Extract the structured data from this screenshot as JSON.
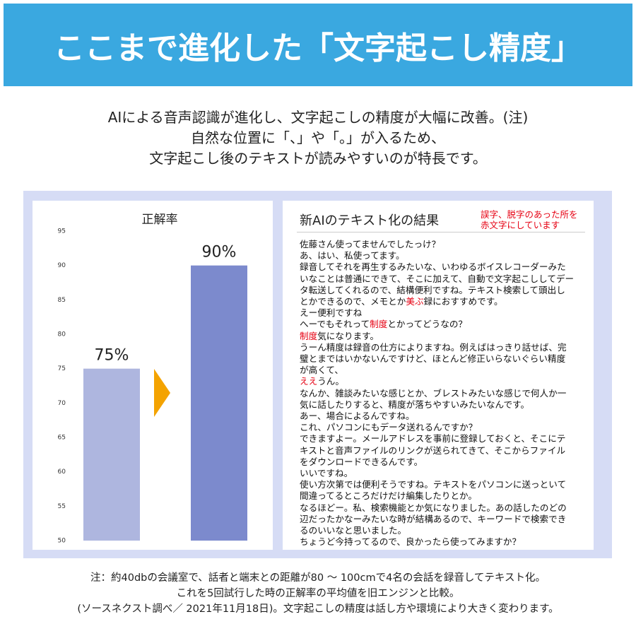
{
  "header": {
    "title": "ここまで進化した「文字起こし精度」"
  },
  "intro": [
    "AIによる音声認識が進化し、文字起こしの精度が大幅に改善。(注)",
    "自然な位置に「、」や「。」が入るため、",
    "文字起こし後のテキストが読みやすいのが特長です。"
  ],
  "chart_data": {
    "type": "bar",
    "title": "正解率",
    "categories": [
      null,
      null
    ],
    "values": [
      75,
      90
    ],
    "value_labels": [
      "75%",
      "90%"
    ],
    "colors": [
      "#aeb6df",
      "#7c8acd"
    ],
    "ylim": [
      50,
      95
    ],
    "yticks": [
      50,
      55,
      60,
      65,
      70,
      75,
      80,
      85,
      90,
      95
    ],
    "grid": false
  },
  "transcript": {
    "title": "新AIのテキスト化の結果",
    "note": [
      "誤字、脱字のあった所を",
      "赤文字にしています"
    ],
    "highlight_color": "#e60012",
    "lines": [
      [
        "佐藤さん使ってませんでしたっけ？"
      ],
      [
        "あ、はい、私使ってます。"
      ],
      [
        "録音してそれを再生するみたいな、いわゆるボイスレコーダーみた"
      ],
      [
        "いなことは普通にできて、そこに加えて、自動で文字起こししてデー"
      ],
      [
        "タ転送してくれるので、結構便利ですね。テキスト検索して頭出し"
      ],
      [
        "とかできるので、メモとか",
        {
          "text": "美ぶ",
          "error": true
        },
        "録におすすめです。"
      ],
      [
        "えー便利ですね"
      ],
      [
        "へーでもそれって",
        {
          "text": "制度",
          "error": true
        },
        "とかってどうなの？"
      ],
      [
        {
          "text": "制度",
          "error": true
        },
        "気になります。"
      ],
      [
        "うーん精度は録音の仕方によりますね。例えばはっきり話せば、完"
      ],
      [
        "璧とまではいかないんですけど、ほとんど修正いらないぐらい精度"
      ],
      [
        "が高くて、"
      ],
      [
        {
          "text": "ええ",
          "error": true
        },
        "うん。"
      ],
      [
        "なんか、雑談みたいな感じとか、ブレストみたいな感じで何人か一"
      ],
      [
        "気に話したりすると、精度が落ちやすいみたいなんです。"
      ],
      [
        "あー、場合によるんですね。"
      ],
      [
        "これ、パソコンにもデータ送れるんですか？"
      ],
      [
        "できますよー。メールアドレスを事前に登録しておくと、そこにテ"
      ],
      [
        "キストと音声ファイルのリンクが送られてきて、そこからファイル"
      ],
      [
        "をダウンロードできるんです。"
      ],
      [
        "いいですね。"
      ],
      [
        "使い方次第では便利そうですね。テキストをパソコンに送っといて"
      ],
      [
        "間違ってるところだけだけ編集したりとか。"
      ],
      [
        "なるほどー。私、検索機能とか気になりました。あの話したのどの"
      ],
      [
        "辺だったかなーみたいな時が結構あるので、キーワードで検索でき"
      ],
      [
        "るのいいなと思いました。"
      ],
      [
        "ちょうど今持ってるので、良かったら使ってみますか？"
      ]
    ]
  },
  "footnote": [
    "注：約40dbの会議室で、話者と端末との距離が80 〜 100cmで4名の会話を録音してテキスト化。",
    "これを5回試行した時の正解率の平均値を旧エンジンと比較。",
    "(ソースネクスト調べ／ 2021年11月18日)。文字起こしの精度は話し方や環境により大きく変わります。"
  ]
}
